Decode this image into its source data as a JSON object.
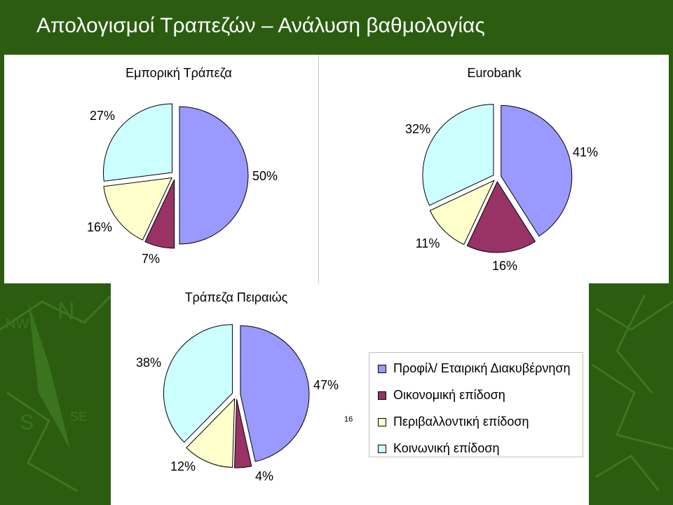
{
  "slide": {
    "title": "Απολογισμοί Τραπεζών – Ανάλυση βαθμολογίας",
    "page_number": "16"
  },
  "colors": {
    "background": "#2b5c10",
    "series": [
      "#9999ff",
      "#993366",
      "#ffffcc",
      "#ccffff"
    ]
  },
  "chart_data": [
    {
      "type": "pie",
      "title": "Εμπορική Τράπεζα",
      "categories": [
        "Προφίλ/ Εταιρική Διακυβέρνηση",
        "Οικονομική επίδοση",
        "Περιβαλλοντική επίδοση",
        "Κοινωνική επίδοση"
      ],
      "values": [
        50,
        7,
        16,
        27
      ],
      "labels": [
        "50%",
        "7%",
        "16%",
        "27%"
      ],
      "exploded": true
    },
    {
      "type": "pie",
      "title": "Eurobank",
      "categories": [
        "Προφίλ/ Εταιρική Διακυβέρνηση",
        "Οικονομική επίδοση",
        "Περιβαλλοντική επίδοση",
        "Κοινωνική επίδοση"
      ],
      "values": [
        41,
        16,
        11,
        32
      ],
      "labels": [
        "41%",
        "16%",
        "11%",
        "32%"
      ],
      "exploded": true
    },
    {
      "type": "pie",
      "title": "Τράπεζα Πειραιώς",
      "categories": [
        "Προφίλ/ Εταιρική Διακυβέρνηση",
        "Οικονομική επίδοση",
        "Περιβαλλοντική επίδοση",
        "Κοινωνική επίδοση"
      ],
      "values": [
        47,
        4,
        12,
        38
      ],
      "labels": [
        "47%",
        "4%",
        "12%",
        "38%"
      ],
      "exploded": true,
      "legend": "right"
    }
  ],
  "legend": {
    "items": [
      {
        "label": "Προφίλ/ Εταιρική Διακυβέρνηση",
        "color": "#9999ff"
      },
      {
        "label": "Οικονομική επίδοση",
        "color": "#993366"
      },
      {
        "label": "Περιβαλλοντική επίδοση",
        "color": "#ffffcc"
      },
      {
        "label": "Κοινωνική επίδοση",
        "color": "#ccffff"
      }
    ]
  }
}
